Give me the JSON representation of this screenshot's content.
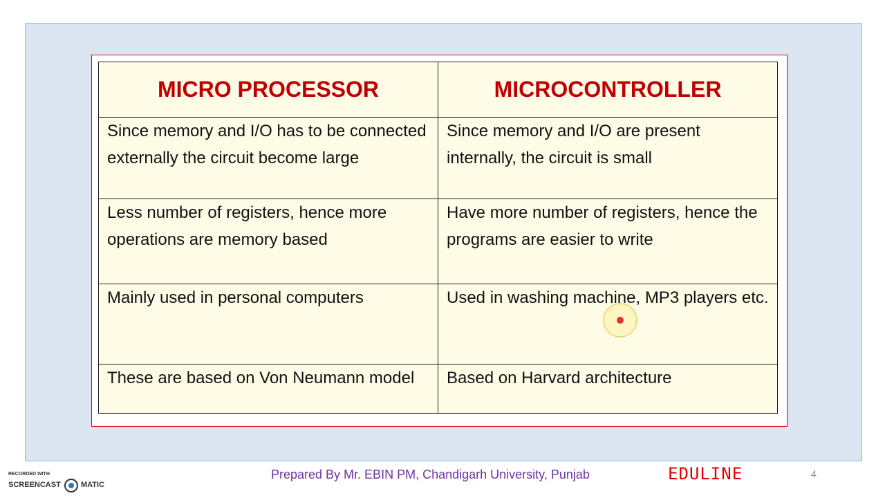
{
  "table": {
    "header": [
      "MICRO PROCESSOR",
      "MICROCONTROLLER"
    ],
    "rows": [
      [
        "Since memory and I/O has to be connected externally the circuit become large",
        "Since memory and I/O are present internally, the circuit is small"
      ],
      [
        "Less number of registers, hence more operations are memory based",
        "Have more number of registers, hence the programs are easier to write"
      ],
      [
        "Mainly used in personal computers",
        "Used in washing machine, MP3 players etc."
      ],
      [
        "These are based on Von Neumann model",
        "Based on Harvard architecture"
      ]
    ]
  },
  "footer": {
    "credit": "Prepared By Mr. EBIN PM, Chandigarh University, Punjab",
    "brand": "EDULINE",
    "page_number": "4"
  },
  "watermark": {
    "line1": "RECORDED WITH",
    "left": "SCREENCAST",
    "right": "MATIC"
  }
}
